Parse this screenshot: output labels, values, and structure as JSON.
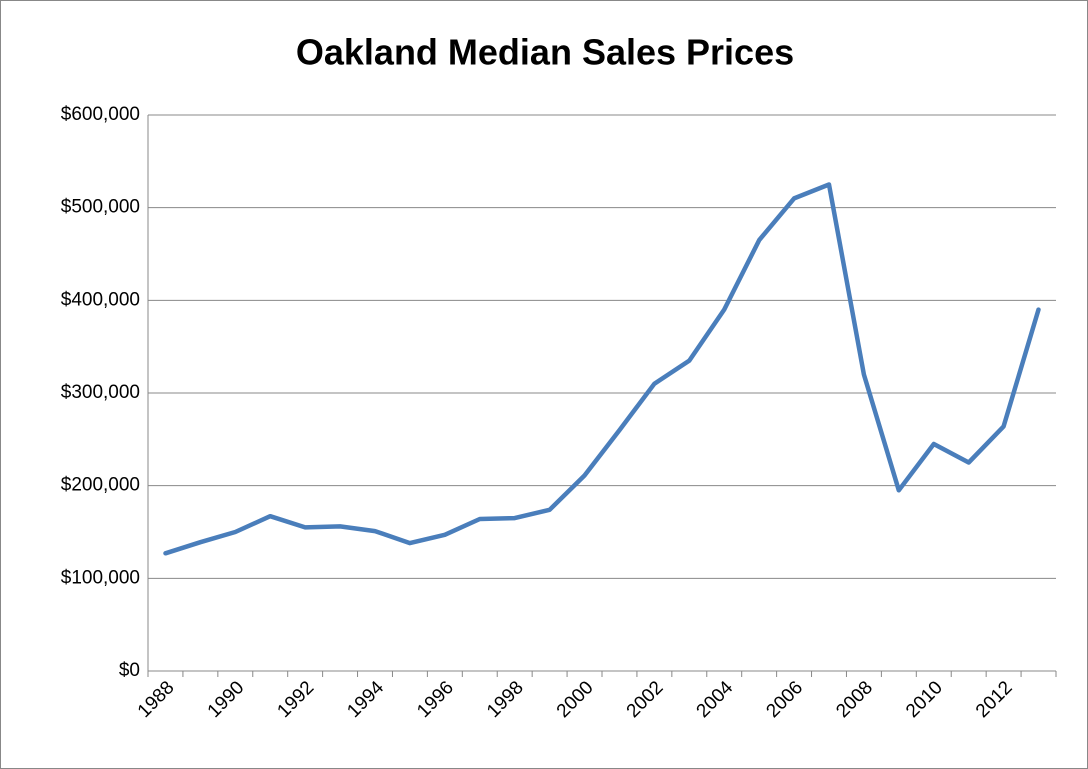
{
  "chart_data": {
    "type": "line",
    "title": "Oakland Median Sales Prices",
    "categories": [
      "1988",
      null,
      "1990",
      null,
      "1992",
      null,
      "1994",
      null,
      "1996",
      null,
      "1998",
      null,
      "2000",
      null,
      "2002",
      null,
      "2004",
      null,
      "2006",
      null,
      "2008",
      null,
      "2010",
      null,
      "2012",
      null
    ],
    "series": [
      {
        "name": "Median Sales Price",
        "color": "#4a7ebb",
        "values": [
          127000,
          139000,
          150000,
          167000,
          155000,
          156000,
          151000,
          138000,
          147000,
          164000,
          165000,
          174000,
          211000,
          260000,
          310000,
          335000,
          390000,
          465000,
          510000,
          525000,
          320000,
          195000,
          245000,
          225000,
          264000,
          390000
        ]
      }
    ],
    "ylim": [
      0,
      600000
    ],
    "yticks": [
      {
        "value": 0,
        "label": "$0"
      },
      {
        "value": 100000,
        "label": "$100,000"
      },
      {
        "value": 200000,
        "label": "$200,000"
      },
      {
        "value": 300000,
        "label": "$300,000"
      },
      {
        "value": 400000,
        "label": "$400,000"
      },
      {
        "value": 500000,
        "label": "$500,000"
      },
      {
        "value": 600000,
        "label": "$600,000"
      }
    ],
    "grid": true
  }
}
